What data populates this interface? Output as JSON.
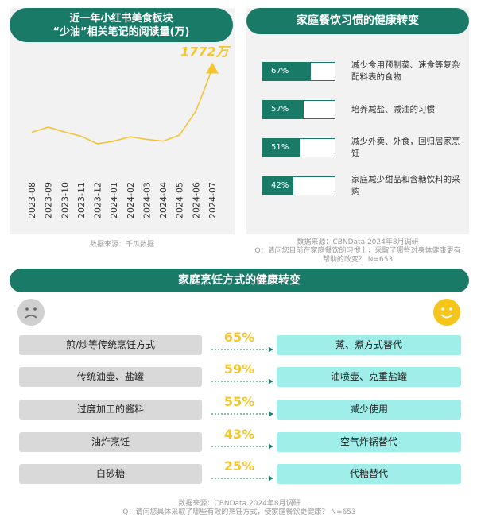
{
  "line_panel": {
    "title_line1": "近一年小红书美食板块",
    "title_line2": "“少油”相关笔记的阅读量(万)",
    "source": "数据来源：千瓜数据"
  },
  "habit_panel": {
    "title": "家庭餐饮习惯的健康转变",
    "source_line1": "数据来源：CBNData 2024年8月调研",
    "source_line2": "Q：请问您目前在家庭餐饮的习惯上，采取了哪些对身体健康更有",
    "source_line3": "帮助的改变？ N=653"
  },
  "cooking_panel": {
    "title": "家庭烹饪方式的健康转变",
    "source_line1": "数据来源：CBNData 2024年8月调研",
    "source_line2": "Q：请问您具体采取了哪些有效的烹饪方式，使家庭餐饮更健康？ N=653",
    "rows": [
      {
        "from": "煎/炒等传统烹饪方式",
        "to": "蒸、煮方式替代",
        "pct": "65%"
      },
      {
        "from": "传统油壶、盐罐",
        "to": "油喷壶、克重盐罐",
        "pct": "59%"
      },
      {
        "from": "过度加工的酱料",
        "to": "减少使用",
        "pct": "55%"
      },
      {
        "from": "油炸烹饪",
        "to": "空气炸锅替代",
        "pct": "43%"
      },
      {
        "from": "白砂糖",
        "to": "代糖替代",
        "pct": "25%"
      }
    ]
  },
  "colors": {
    "accent": "#1a7a68",
    "highlight": "#f3c62f",
    "line": "#f4c33a",
    "old_box": "#d9d9d9",
    "new_box": "#9feeea"
  },
  "icons": {
    "sad": "sad-face-icon",
    "happy": "happy-face-icon",
    "arrow": "dotted-arrow-icon",
    "peak": "triangle-marker-icon"
  },
  "chart_data": [
    {
      "type": "line",
      "title": "近一年小红书美食板块“少油”相关笔记的阅读量(万)",
      "x": [
        "2023-08",
        "2023-09",
        "2023-10",
        "2023-11",
        "2023-12",
        "2024-01",
        "2024-02",
        "2024-03",
        "2024-04",
        "2024-05",
        "2024-06",
        "2024-07"
      ],
      "values": [
        555,
        655,
        560,
        480,
        335,
        385,
        470,
        420,
        385,
        500,
        960,
        1772
      ],
      "annotation": "1772万",
      "ylim": [
        0,
        2100
      ],
      "grid": false,
      "axis_line": false
    },
    {
      "type": "bar",
      "orientation": "horizontal",
      "categories": [
        "减少食用预制菜、速食等复杂配料表的食物",
        "培养减盐、减油的习惯",
        "减少外卖、外食，回归居家烹饪",
        "家庭减少甜品和含糖饮料的采购"
      ],
      "values": [
        67,
        57,
        51,
        42
      ],
      "labels": [
        "67%",
        "57%",
        "51%",
        "42%"
      ],
      "xlim": [
        0,
        100
      ]
    }
  ]
}
